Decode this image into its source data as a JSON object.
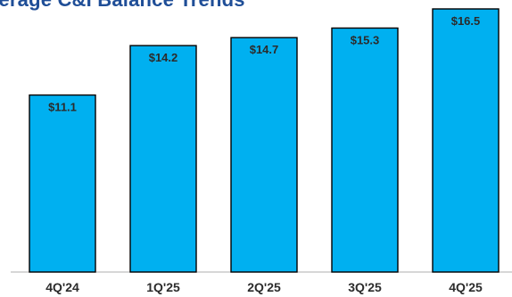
{
  "chart_data": {
    "type": "bar",
    "title": "Average C&I Balance Trends",
    "title_visible": "verage C&I Balance Trends",
    "categories": [
      "4Q'24",
      "1Q'25",
      "2Q'25",
      "3Q'25",
      "4Q'25"
    ],
    "values": [
      11.1,
      14.2,
      14.7,
      15.3,
      16.5
    ],
    "value_labels": [
      "$11.1",
      "$14.2",
      "$14.7",
      "$15.3",
      "$16.5"
    ],
    "xlabel": "",
    "ylabel": "",
    "ylim": [
      0,
      16.5
    ],
    "grid": false,
    "legend": "none",
    "colors": {
      "bar": "#00b0f0",
      "bar_outline": "#000000",
      "title": "#1f4e97",
      "text": "#2b2b2b"
    }
  }
}
